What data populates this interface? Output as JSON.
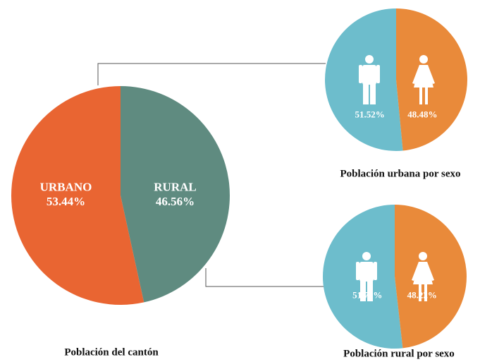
{
  "chart_data": [
    {
      "type": "pie",
      "title": "Población del cantón",
      "categories": [
        "URBANO",
        "RURAL"
      ],
      "values": [
        53.44,
        46.56
      ],
      "value_labels": [
        "53.44%",
        "46.56%"
      ],
      "colors": [
        "#e96532",
        "#5f8b80"
      ]
    },
    {
      "type": "pie",
      "title": "Población urbana por sexo",
      "categories": [
        null,
        null
      ],
      "values": [
        51.52,
        48.48
      ],
      "value_labels": [
        "51.52%",
        "48.48%"
      ],
      "colors": [
        "#6dbdcc",
        "#e98a3a"
      ]
    },
    {
      "type": "pie",
      "title": "Población rural por sexo",
      "categories": [
        null,
        null
      ],
      "values": [
        51.78,
        48.22
      ],
      "value_labels": [
        "51.78%",
        "48.22%"
      ],
      "colors": [
        "#6dbdcc",
        "#e98a3a"
      ]
    }
  ]
}
